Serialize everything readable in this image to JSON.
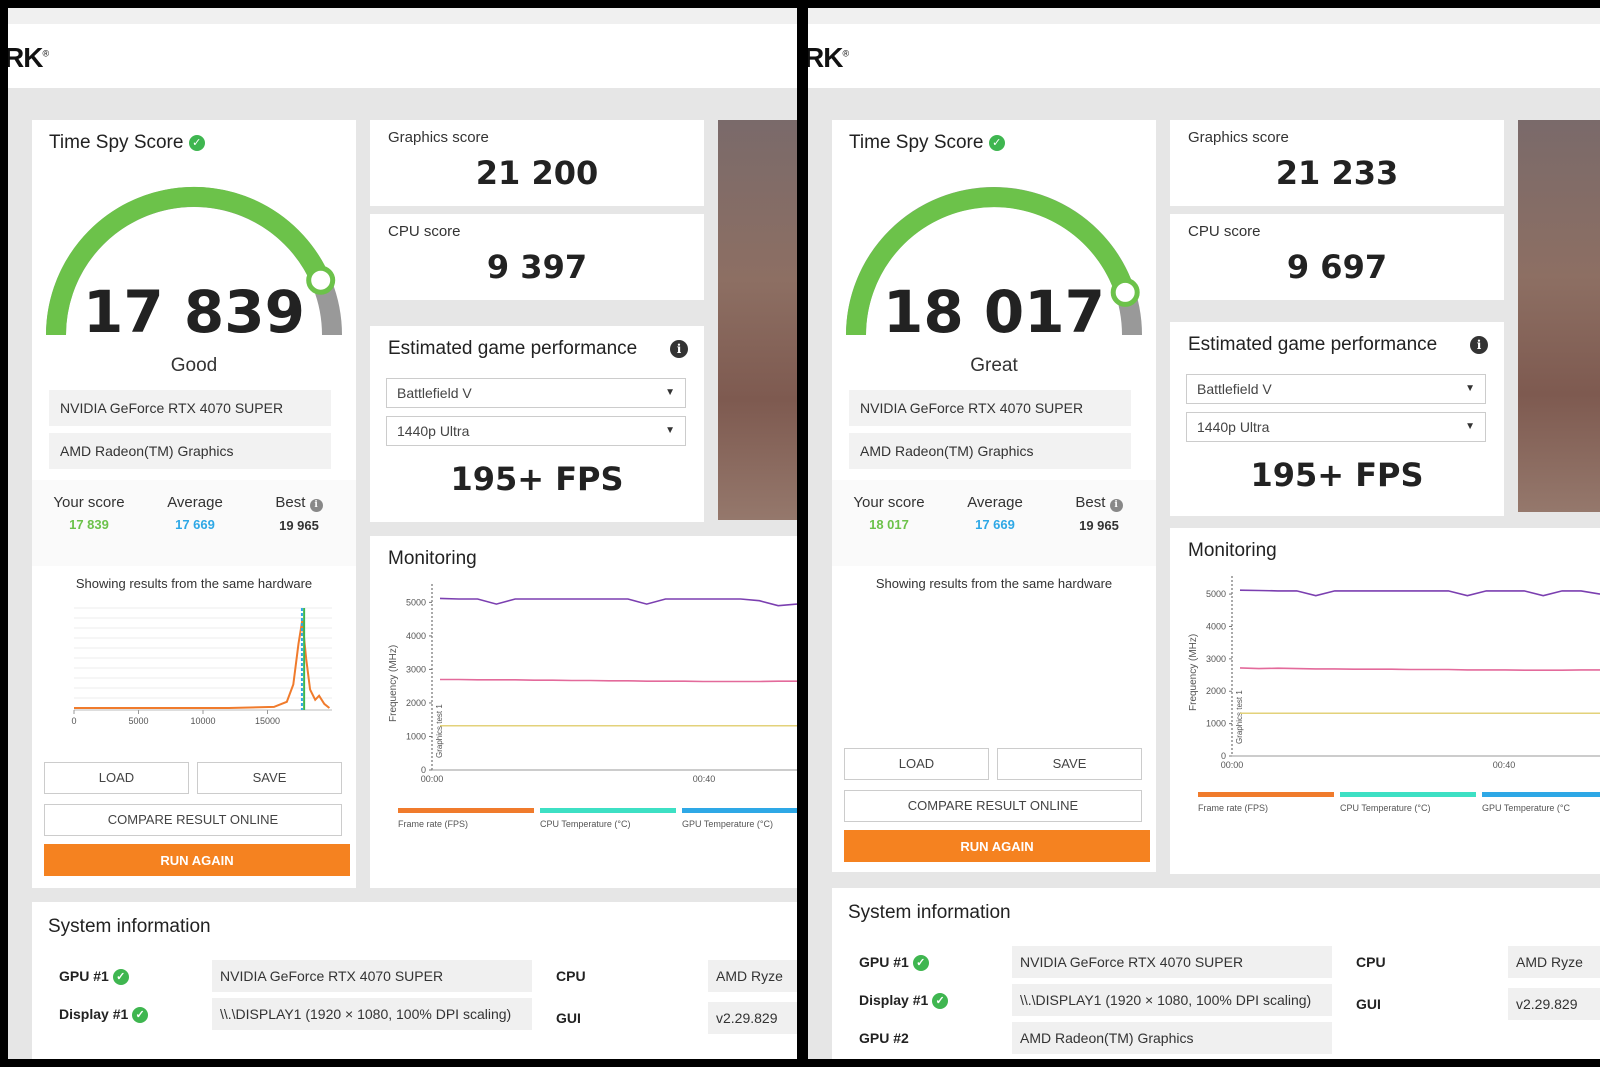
{
  "logo": "RK",
  "panels": [
    {
      "score_title": "Time Spy Score",
      "score": "17 839",
      "rating": "Good",
      "gauge_fraction": 0.87,
      "hardware": [
        "NVIDIA GeForce RTX 4070 SUPER",
        "AMD Radeon(TM) Graphics"
      ],
      "your_score_label": "Your score",
      "your_score": "17 839",
      "average_label": "Average",
      "average": "17 669",
      "best_label": "Best",
      "best": "19 965",
      "same_hw_note": "Showing results from the same hardware",
      "hist": {
        "ticks": [
          "0",
          "5000",
          "10000",
          "15000"
        ],
        "tick_values": [
          0,
          5000,
          10000,
          15000
        ],
        "xmax": 20000,
        "curve": [
          [
            0,
            0.02
          ],
          [
            12000,
            0.02
          ],
          [
            15500,
            0.03
          ],
          [
            16500,
            0.08
          ],
          [
            17000,
            0.25
          ],
          [
            17400,
            0.65
          ],
          [
            17700,
            0.88
          ],
          [
            18000,
            0.5
          ],
          [
            18300,
            0.2
          ],
          [
            18700,
            0.1
          ],
          [
            19000,
            0.14
          ],
          [
            19400,
            0.06
          ],
          [
            19800,
            0.02
          ]
        ],
        "markers": [
          17669,
          17839
        ]
      },
      "buttons": {
        "load": "LOAD",
        "save": "SAVE",
        "compare": "COMPARE RESULT ONLINE",
        "run": "RUN AGAIN"
      },
      "graphics_label": "Graphics score",
      "graphics_score": "21 200",
      "cpu_label": "CPU score",
      "cpu_score": "9 397",
      "est_title": "Estimated game performance",
      "game": "Battlefield V",
      "preset": "1440p Ultra",
      "fps": "195+ FPS",
      "monitoring_title": "Monitoring",
      "mon": {
        "y_ticks": [
          "5000",
          "4000",
          "3000",
          "2000",
          "1000",
          "0"
        ],
        "y_values": [
          5000,
          4000,
          3000,
          2000,
          1000,
          0
        ],
        "x_ticks": [
          "00:00",
          "00:40"
        ],
        "ylabel": "Frequency (MHz)",
        "marker_label": "Graphics test 1",
        "purple": [
          5120,
          5100,
          5100,
          4950,
          5100,
          5100,
          5100,
          5100,
          5100,
          5100,
          5100,
          4950,
          5100,
          5100,
          5100,
          5100,
          5100,
          5050,
          4900,
          4950
        ],
        "pink": [
          2700,
          2700,
          2690,
          2690,
          2690,
          2680,
          2680,
          2670,
          2670,
          2660,
          2660,
          2650,
          2650,
          2650,
          2640,
          2640,
          2640,
          2640,
          2650,
          2650
        ],
        "yellow": 1320
      },
      "legend": [
        {
          "label": "Frame rate (FPS)",
          "color": "#f07b2c"
        },
        {
          "label": "CPU Temperature (°C)",
          "color": "#3de0c4"
        },
        {
          "label": "GPU Temperature (°C)",
          "color": "#2ea8e6"
        }
      ],
      "sysinfo_title": "System information",
      "sys": [
        {
          "label": "GPU #1",
          "value": "NVIDIA GeForce RTX 4070 SUPER",
          "ok": true
        },
        {
          "label": "Display #1",
          "value": "\\\\.\\DISPLAY1 (1920 × 1080, 100% DPI scaling)",
          "ok": true
        }
      ],
      "sys_right": [
        {
          "label": "CPU",
          "value": "AMD Ryze"
        },
        {
          "label": "GUI",
          "value": "v2.29.829"
        }
      ]
    },
    {
      "score_title": "Time Spy Score",
      "score": "18 017",
      "rating": "Great",
      "gauge_fraction": 0.9,
      "hardware": [
        "NVIDIA GeForce RTX 4070 SUPER",
        "AMD Radeon(TM) Graphics"
      ],
      "your_score_label": "Your score",
      "your_score": "18 017",
      "average_label": "Average",
      "average": "17 669",
      "best_label": "Best",
      "best": "19 965",
      "same_hw_note": "Showing results from the same hardware",
      "buttons": {
        "load": "LOAD",
        "save": "SAVE",
        "compare": "COMPARE RESULT ONLINE",
        "run": "RUN AGAIN"
      },
      "graphics_label": "Graphics score",
      "graphics_score": "21 233",
      "cpu_label": "CPU score",
      "cpu_score": "9 697",
      "est_title": "Estimated game performance",
      "game": "Battlefield V",
      "preset": "1440p Ultra",
      "fps": "195+ FPS",
      "monitoring_title": "Monitoring",
      "mon": {
        "y_ticks": [
          "5000",
          "4000",
          "3000",
          "2000",
          "1000",
          "0"
        ],
        "y_values": [
          5000,
          4000,
          3000,
          2000,
          1000,
          0
        ],
        "x_ticks": [
          "00:00",
          "00:40"
        ],
        "ylabel": "Frequency (MHz)",
        "marker_label": "Graphics test 1",
        "purple": [
          5120,
          5110,
          5100,
          5100,
          4950,
          5100,
          5100,
          5100,
          5100,
          5100,
          5100,
          5100,
          4950,
          5100,
          5100,
          5100,
          4950,
          5100,
          5100,
          5000
        ],
        "pink": [
          2720,
          2700,
          2710,
          2700,
          2690,
          2690,
          2680,
          2680,
          2680,
          2670,
          2670,
          2670,
          2660,
          2660,
          2660,
          2650,
          2650,
          2650,
          2660,
          2660
        ],
        "yellow": 1320
      },
      "legend": [
        {
          "label": "Frame rate (FPS)",
          "color": "#f07b2c"
        },
        {
          "label": "CPU Temperature (°C)",
          "color": "#3de0c4"
        },
        {
          "label": "GPU Temperature (°C",
          "color": "#2ea8e6"
        }
      ],
      "sysinfo_title": "System information",
      "sys": [
        {
          "label": "GPU #1",
          "value": "NVIDIA GeForce RTX 4070 SUPER",
          "ok": true
        },
        {
          "label": "Display #1",
          "value": "\\\\.\\DISPLAY1 (1920 × 1080, 100% DPI scaling)",
          "ok": true
        },
        {
          "label": "GPU #2",
          "value": "AMD Radeon(TM) Graphics",
          "ok": false
        }
      ],
      "sys_right": [
        {
          "label": "CPU",
          "value": "AMD Ryze"
        },
        {
          "label": "GUI",
          "value": "v2.29.829"
        }
      ]
    }
  ]
}
